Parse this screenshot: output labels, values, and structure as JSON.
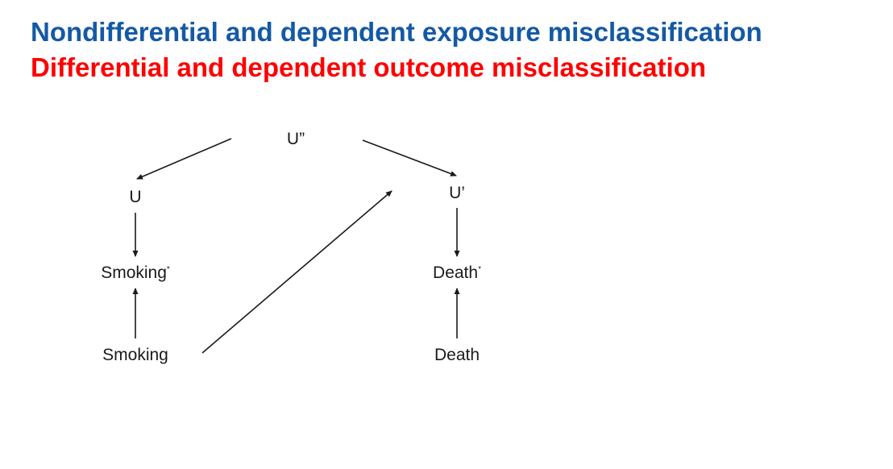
{
  "colors": {
    "title_primary": "#1459a6",
    "title_secondary": "#ff0000",
    "edge": "#1a1a1a"
  },
  "titles": {
    "line1": "Nondifferential and dependent exposure misclassification",
    "line2": "Differential and dependent outcome misclassification"
  },
  "nodes": {
    "u_double": "U”",
    "u": "U",
    "u_prime": "U’",
    "smoking_measured": "Smoking",
    "smoking_measured_mark": "*",
    "death_measured": "Death",
    "death_measured_mark": "*",
    "smoking": "Smoking",
    "death": "Death"
  },
  "edges": [
    {
      "from": "u_double",
      "to": "u"
    },
    {
      "from": "u_double",
      "to": "u_prime"
    },
    {
      "from": "u",
      "to": "smoking_measured"
    },
    {
      "from": "smoking",
      "to": "smoking_measured"
    },
    {
      "from": "smoking",
      "to": "u_prime"
    },
    {
      "from": "u_prime",
      "to": "death_measured"
    },
    {
      "from": "death",
      "to": "death_measured"
    }
  ]
}
